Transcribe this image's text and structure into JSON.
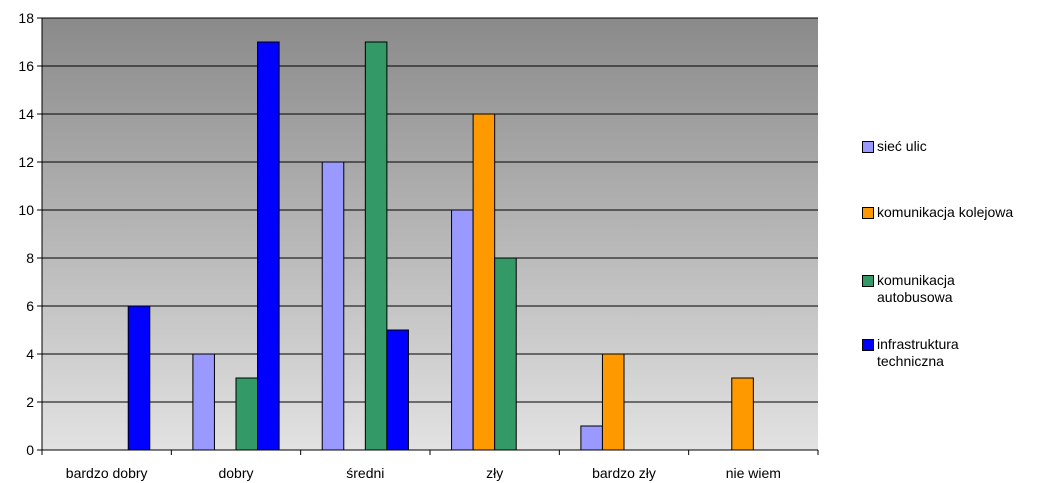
{
  "chart_data": {
    "type": "bar",
    "categories": [
      "bardzo dobry",
      "dobry",
      "średni",
      "zły",
      "bardzo zły",
      "nie wiem"
    ],
    "series": [
      {
        "name": "sieć ulic",
        "color": "#9999ff",
        "values": [
          0,
          4,
          12,
          10,
          1,
          0
        ]
      },
      {
        "name": "komunikacja kolejowa",
        "color": "#ff9900",
        "values": [
          0,
          0,
          0,
          14,
          4,
          3
        ]
      },
      {
        "name": "komunikacja autobusowa",
        "color": "#339966",
        "values": [
          0,
          3,
          17,
          8,
          0,
          0
        ]
      },
      {
        "name": "infrastruktura techniczna",
        "color": "#0000ff",
        "values": [
          6,
          17,
          5,
          0,
          0,
          0
        ]
      }
    ],
    "title": "",
    "xlabel": "",
    "ylabel": "",
    "ylim": [
      0,
      18
    ],
    "yticks": [
      0,
      2,
      4,
      6,
      8,
      10,
      12,
      14,
      16,
      18
    ],
    "grid": true,
    "legend_position": "right",
    "background": "gradient-gray"
  }
}
